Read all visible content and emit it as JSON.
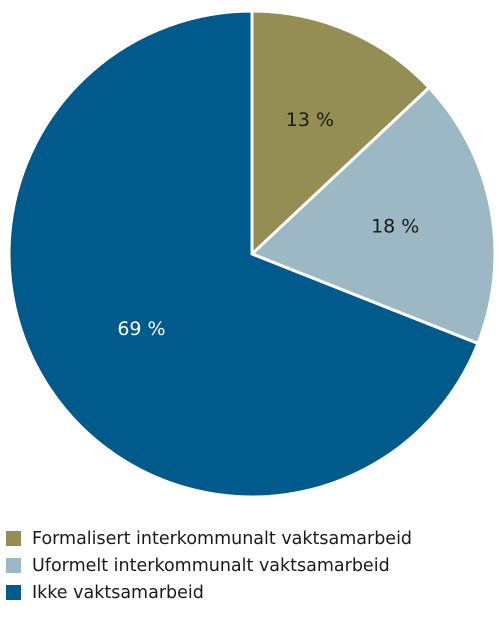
{
  "chart_data": {
    "type": "pie",
    "title": "",
    "categories": [
      "Formalisert interkommunalt vaktsamarbeid",
      "Uformelt interkommunalt vaktsamarbeid",
      "Ikke vaktsamarbeid"
    ],
    "values": [
      13,
      18,
      69
    ],
    "data_labels": [
      "13 %",
      "18 %",
      "69 %"
    ],
    "colors": [
      "#948e55",
      "#9cb8c4",
      "#005b8c"
    ],
    "start_angle_deg": 0,
    "direction": "clockwise",
    "legend_position": "bottom-left"
  }
}
